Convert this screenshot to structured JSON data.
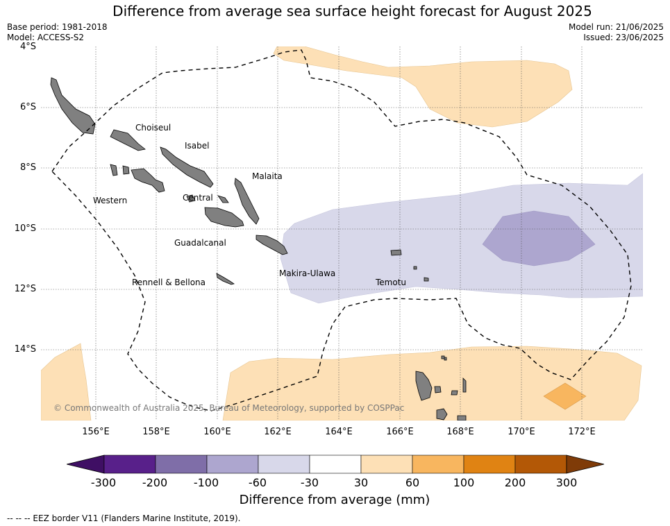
{
  "title": "Difference from average sea surface height forecast for August 2025",
  "meta": {
    "base_period": "Base period: 1981-2018",
    "model": "Model: ACCESS-S2",
    "model_run": "Model run: 21/06/2025",
    "issued": "Issued: 23/06/2025"
  },
  "map": {
    "lat_ticks": [
      "4°S",
      "6°S",
      "8°S",
      "10°S",
      "12°S",
      "14°S"
    ],
    "lon_ticks": [
      "156°E",
      "158°E",
      "160°E",
      "162°E",
      "164°E",
      "166°E",
      "168°E",
      "170°E",
      "172°E"
    ],
    "regions": [
      "Choiseul",
      "Isabel",
      "Malaita",
      "Western",
      "Central",
      "Guadalcanal",
      "Makira-Ulawa",
      "Rennell & Bellona",
      "Temotu"
    ],
    "copyright": "© Commonwealth of Australia 2025, Bureau of Meteorology, supported by COSPPac"
  },
  "colorbar": {
    "ticks": [
      "-300",
      "-200",
      "-100",
      "-60",
      "-30",
      "30",
      "60",
      "100",
      "200",
      "300"
    ],
    "colors": [
      "#3f0f64",
      "#58208a",
      "#7f6ea8",
      "#ada6cf",
      "#d8d8ea",
      "#ffffff",
      "#fde0b6",
      "#f8b65f",
      "#e08313",
      "#b35806",
      "#7f3b08"
    ],
    "title": "Difference from average (mm)"
  },
  "legend_note": "--  --  -- EEZ border V11 (Flanders Marine Institute, 2019)."
}
